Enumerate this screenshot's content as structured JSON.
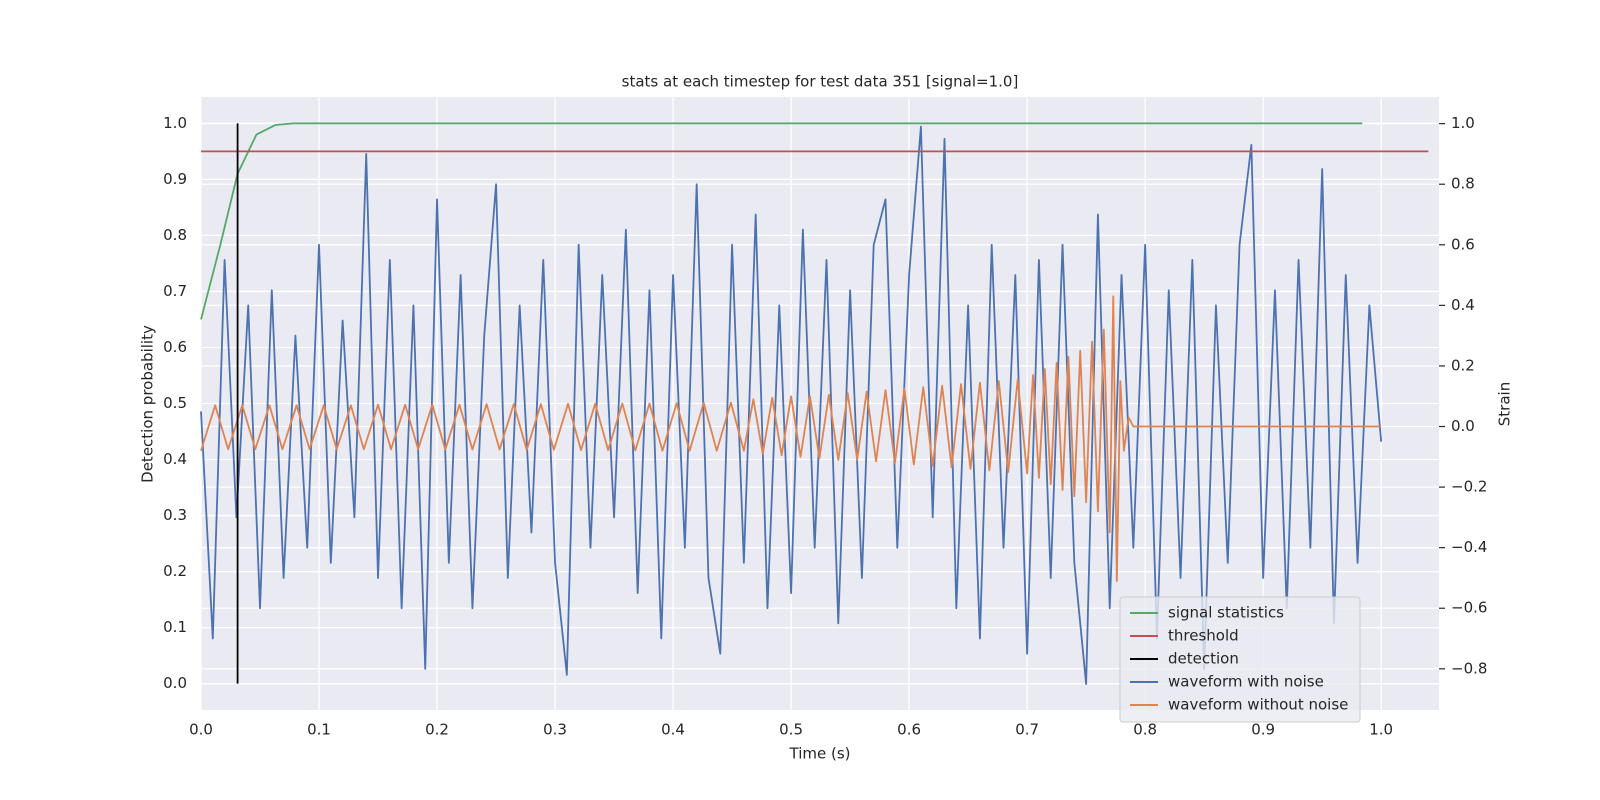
{
  "chart_data": {
    "type": "line",
    "title": "stats at each timestep for test data 351 [signal=1.0]",
    "x_label": "Time (s)",
    "y_label": "Detection probability",
    "y2_label": "Strain",
    "xlim": [
      0,
      1.049
    ],
    "ylim": [
      -0.047,
      1.047
    ],
    "y2lim": [
      -0.936,
      1.088
    ],
    "xticks": [
      {
        "value": 0,
        "label": "0.0"
      },
      0.1,
      0.2,
      0.3,
      0.4,
      0.5,
      0.6,
      0.7,
      0.8,
      0.9,
      {
        "value": 1,
        "label": "1.0"
      }
    ],
    "yticks": [
      {
        "value": 0,
        "label": "0.0"
      },
      0.1,
      0.2,
      0.3,
      0.4,
      0.5,
      0.6,
      0.7,
      0.8,
      0.9,
      {
        "value": 1,
        "label": "1.0"
      }
    ],
    "y2ticks": [
      {
        "value": -0.8,
        "label": "−0.8"
      },
      {
        "value": -0.6,
        "label": "−0.6"
      },
      {
        "value": -0.4,
        "label": "−0.4"
      },
      {
        "value": -0.2,
        "label": "−0.2"
      },
      {
        "value": 0,
        "label": "0.0"
      },
      0.2,
      0.4,
      0.6,
      0.8,
      {
        "value": 1,
        "label": "1.0"
      }
    ],
    "grid": true,
    "legend": "lower right",
    "series": [
      {
        "name": "signal statistics",
        "color": "#55a868",
        "axis": "y",
        "x": [
          0,
          0.016,
          0.031,
          0.047,
          0.063,
          0.078,
          0.984
        ],
        "values": [
          0.65,
          0.78,
          0.91,
          0.98,
          0.997,
          1.0,
          1.0
        ]
      },
      {
        "name": "threshold",
        "color": "#c44e52",
        "axis": "y",
        "x": [
          0,
          1.04
        ],
        "values": [
          0.95,
          0.95
        ]
      },
      {
        "name": "detection",
        "color": "#000000",
        "axis": "y",
        "x": [
          0.031,
          0.031
        ],
        "values": [
          0,
          1
        ]
      },
      {
        "name": "waveform with noise",
        "color": "#4c72b0",
        "axis": "y2",
        "x": [
          0,
          0.01,
          0.02,
          0.03,
          0.04,
          0.05,
          0.06,
          0.07,
          0.08,
          0.09,
          0.1,
          0.11,
          0.12,
          0.13,
          0.14,
          0.15,
          0.16,
          0.17,
          0.18,
          0.19,
          0.2,
          0.21,
          0.22,
          0.23,
          0.24,
          0.25,
          0.26,
          0.27,
          0.28,
          0.29,
          0.3,
          0.31,
          0.32,
          0.33,
          0.34,
          0.35,
          0.36,
          0.37,
          0.38,
          0.39,
          0.4,
          0.41,
          0.42,
          0.43,
          0.44,
          0.45,
          0.46,
          0.47,
          0.48,
          0.49,
          0.5,
          0.51,
          0.52,
          0.53,
          0.54,
          0.55,
          0.56,
          0.57,
          0.58,
          0.59,
          0.6,
          0.61,
          0.62,
          0.63,
          0.64,
          0.65,
          0.66,
          0.67,
          0.68,
          0.69,
          0.7,
          0.71,
          0.72,
          0.73,
          0.74,
          0.75,
          0.76,
          0.77,
          0.78,
          0.79,
          0.8,
          0.81,
          0.82,
          0.83,
          0.84,
          0.85,
          0.86,
          0.87,
          0.88,
          0.89,
          0.9,
          0.91,
          0.92,
          0.93,
          0.94,
          0.95,
          0.96,
          0.97,
          0.98,
          0.99,
          1.0
        ],
        "values": [
          0.05,
          -0.7,
          0.55,
          -0.3,
          0.4,
          -0.6,
          0.45,
          -0.5,
          0.3,
          -0.4,
          0.6,
          -0.45,
          0.35,
          -0.3,
          0.9,
          -0.5,
          0.55,
          -0.6,
          0.4,
          -0.8,
          0.75,
          -0.45,
          0.5,
          -0.6,
          0.3,
          0.8,
          -0.5,
          0.4,
          -0.35,
          0.55,
          -0.45,
          -0.82,
          0.6,
          -0.4,
          0.5,
          -0.3,
          0.65,
          -0.55,
          0.45,
          -0.7,
          0.5,
          -0.4,
          0.8,
          -0.5,
          -0.75,
          0.6,
          -0.45,
          0.7,
          -0.6,
          0.4,
          -0.55,
          0.65,
          -0.4,
          0.55,
          -0.65,
          0.45,
          -0.5,
          0.6,
          0.75,
          -0.4,
          0.5,
          0.99,
          -0.3,
          0.95,
          -0.6,
          0.4,
          -0.7,
          0.6,
          -0.4,
          0.5,
          -0.75,
          0.55,
          -0.5,
          0.6,
          -0.45,
          -0.85,
          0.7,
          -0.6,
          0.5,
          -0.4,
          0.6,
          -0.7,
          0.45,
          -0.5,
          0.55,
          -0.8,
          0.4,
          -0.45,
          0.6,
          0.93,
          -0.5,
          0.45,
          -0.6,
          0.55,
          -0.4,
          0.85,
          -0.65,
          0.5,
          -0.45,
          0.4,
          -0.05
        ]
      },
      {
        "name": "waveform without noise",
        "color": "#dd8452",
        "axis": "y2",
        "x": [
          0,
          0.012,
          0.023,
          0.035,
          0.046,
          0.058,
          0.069,
          0.081,
          0.092,
          0.104,
          0.115,
          0.127,
          0.138,
          0.15,
          0.161,
          0.173,
          0.184,
          0.196,
          0.207,
          0.219,
          0.23,
          0.242,
          0.253,
          0.265,
          0.276,
          0.288,
          0.299,
          0.311,
          0.322,
          0.334,
          0.345,
          0.357,
          0.368,
          0.38,
          0.391,
          0.403,
          0.414,
          0.426,
          0.437,
          0.449,
          0.46,
          0.468,
          0.476,
          0.484,
          0.492,
          0.5,
          0.508,
          0.516,
          0.524,
          0.532,
          0.54,
          0.548,
          0.556,
          0.564,
          0.572,
          0.58,
          0.588,
          0.596,
          0.604,
          0.612,
          0.62,
          0.628,
          0.636,
          0.644,
          0.652,
          0.66,
          0.668,
          0.676,
          0.684,
          0.692,
          0.7,
          0.705,
          0.71,
          0.715,
          0.72,
          0.725,
          0.73,
          0.735,
          0.74,
          0.745,
          0.75,
          0.755,
          0.76,
          0.765,
          0.77,
          0.773,
          0.776,
          0.779,
          0.782,
          0.786,
          0.79,
          1.0
        ],
        "values": [
          -0.08,
          0.07,
          -0.075,
          0.07,
          -0.075,
          0.07,
          -0.075,
          0.07,
          -0.075,
          0.07,
          -0.075,
          0.07,
          -0.075,
          0.072,
          -0.075,
          0.072,
          -0.075,
          0.072,
          -0.076,
          0.072,
          -0.076,
          0.074,
          -0.076,
          0.074,
          -0.077,
          0.074,
          -0.077,
          0.075,
          -0.078,
          0.075,
          -0.078,
          0.076,
          -0.079,
          0.076,
          -0.08,
          0.077,
          -0.08,
          0.078,
          -0.08,
          0.079,
          -0.08,
          0.09,
          -0.09,
          0.095,
          -0.095,
          0.1,
          -0.1,
          0.1,
          -0.105,
          0.105,
          -0.11,
          0.11,
          -0.11,
          0.115,
          -0.115,
          0.12,
          -0.12,
          0.125,
          -0.125,
          0.13,
          -0.13,
          0.135,
          -0.135,
          0.14,
          -0.14,
          0.145,
          -0.145,
          0.15,
          -0.15,
          0.155,
          -0.155,
          0.17,
          -0.17,
          0.19,
          -0.19,
          0.21,
          -0.21,
          0.23,
          -0.23,
          0.25,
          -0.25,
          0.28,
          -0.28,
          0.32,
          -0.35,
          0.43,
          -0.51,
          0.15,
          -0.08,
          0.03,
          0,
          0
        ]
      }
    ]
  }
}
